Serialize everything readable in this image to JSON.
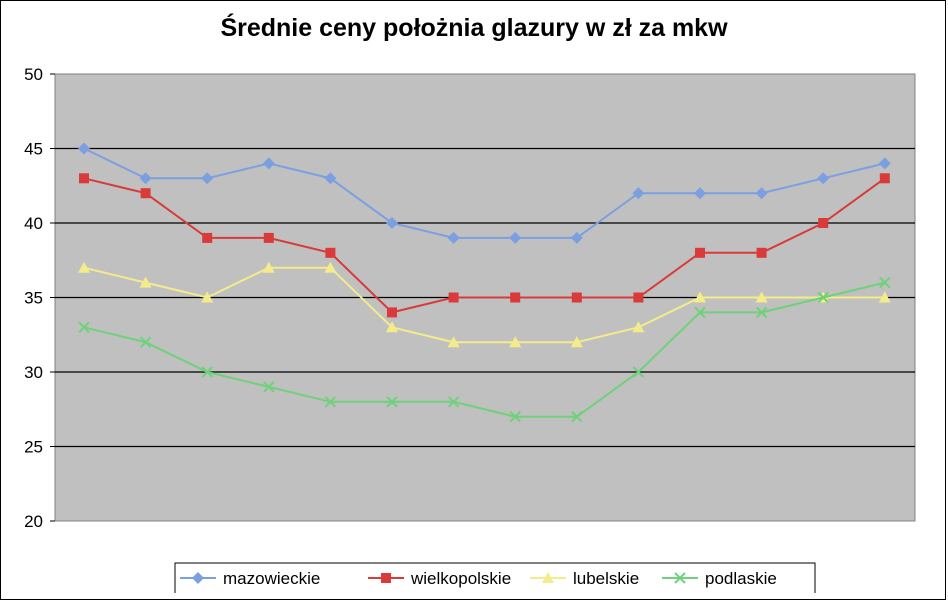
{
  "chart_data": {
    "type": "line",
    "title": "Średnie ceny położnia glazury w zł za mkw",
    "xlabel": "",
    "ylabel": "",
    "ylim": [
      20,
      50
    ],
    "yticks": [
      20,
      25,
      30,
      35,
      40,
      45,
      50
    ],
    "x": [
      1,
      2,
      3,
      4,
      5,
      6,
      7,
      8,
      9,
      10,
      11,
      12,
      13,
      14
    ],
    "grid": "horizontal",
    "plot_background": "#c0c0c0",
    "legend_position": "bottom",
    "series": [
      {
        "name": "mazowieckie",
        "color": "#7b9fe0",
        "marker": "diamond",
        "values": [
          45,
          43,
          43,
          44,
          43,
          40,
          39,
          39,
          39,
          42,
          42,
          42,
          43,
          44
        ]
      },
      {
        "name": "wielkopolskie",
        "color": "#d93a3a",
        "marker": "square",
        "values": [
          43,
          42,
          39,
          39,
          38,
          34,
          35,
          35,
          35,
          35,
          38,
          38,
          40,
          43
        ]
      },
      {
        "name": "lubelskie",
        "color": "#f4ec8a",
        "marker": "triangle",
        "values": [
          37,
          36,
          35,
          37,
          37,
          33,
          32,
          32,
          32,
          33,
          35,
          35,
          35,
          35
        ]
      },
      {
        "name": "podlaskie",
        "color": "#6fd17a",
        "marker": "x",
        "values": [
          33,
          32,
          30,
          29,
          28,
          28,
          28,
          27,
          27,
          30,
          34,
          34,
          35,
          36
        ]
      }
    ]
  }
}
